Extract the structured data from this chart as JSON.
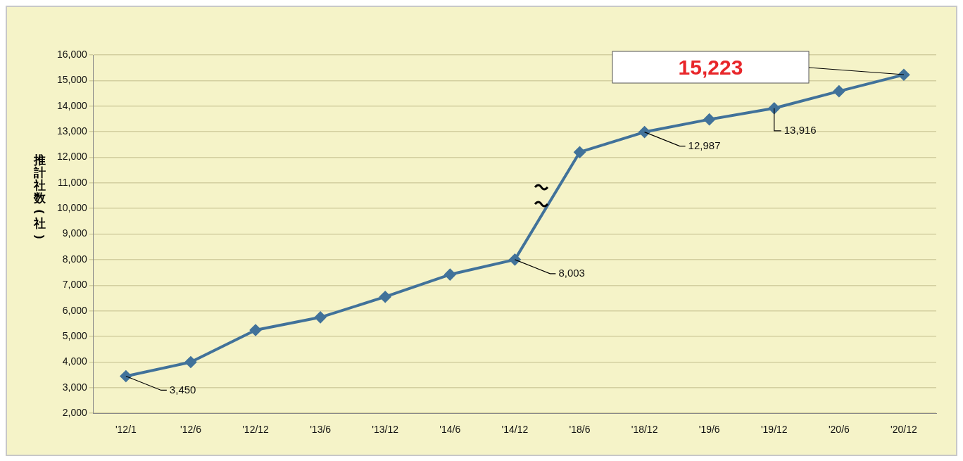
{
  "chart_data": {
    "type": "line",
    "ylabel": "推計社数(社)",
    "categories": [
      "'12/1",
      "'12/6",
      "'12/12",
      "'13/6",
      "'13/12",
      "'14/6",
      "'14/12",
      "'18/6",
      "'18/12",
      "'19/6",
      "'19/12",
      "'20/6",
      "'20/12"
    ],
    "series": [
      {
        "color": "#41729a",
        "values": [
          3450,
          4000,
          5250,
          5750,
          6550,
          7420,
          8003,
          12200,
          12987,
          13480,
          13916,
          14580,
          15223
        ],
        "value_labels": [
          "3,450",
          null,
          null,
          null,
          null,
          null,
          "8,003",
          null,
          "12,987",
          null,
          "13,916",
          null,
          null
        ]
      }
    ],
    "annotations": [
      "15,223"
    ],
    "ylim": [
      2000,
      16000
    ],
    "yticks": [
      {
        "value": 2000,
        "label": "2,000"
      },
      {
        "value": 3000,
        "label": "3,000"
      },
      {
        "value": 4000,
        "label": "4,000"
      },
      {
        "value": 5000,
        "label": "5,000"
      },
      {
        "value": 6000,
        "label": "6,000"
      },
      {
        "value": 7000,
        "label": "7,000"
      },
      {
        "value": 8000,
        "label": "8,000"
      },
      {
        "value": 9000,
        "label": "9,000"
      },
      {
        "value": 10000,
        "label": "10,000"
      },
      {
        "value": 11000,
        "label": "11,000"
      },
      {
        "value": 12000,
        "label": "12,000"
      },
      {
        "value": 13000,
        "label": "13,000"
      },
      {
        "value": 14000,
        "label": "14,000"
      },
      {
        "value": 15000,
        "label": "15,000"
      },
      {
        "value": 16000,
        "label": "16,000"
      }
    ],
    "grid": "y",
    "marker": "diamond",
    "line_style": "solid",
    "legend": false
  }
}
